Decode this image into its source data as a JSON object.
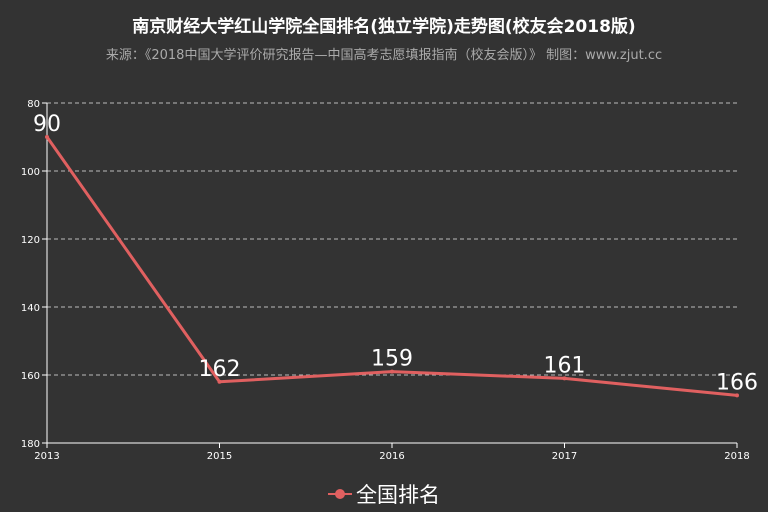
{
  "chart_data": {
    "type": "line",
    "title": "南京财经大学红山学院全国排名(独立学院)走势图(校友会2018版)",
    "subtitle": "来源：《2018中国大学评价研究报告—中国高考志愿填报指南（校友会版）》 制图：www.zjut.cc",
    "categories": [
      "2013",
      "2015",
      "2016",
      "2017",
      "2018"
    ],
    "series": [
      {
        "name": "全国排名",
        "values": [
          90,
          162,
          159,
          161,
          166
        ],
        "color": "#e06060"
      }
    ],
    "ylim": [
      80,
      180
    ],
    "y_inverse": true,
    "yticks": [
      80,
      100,
      120,
      140,
      160,
      180
    ],
    "legend": "bottom-center",
    "grid": true
  }
}
